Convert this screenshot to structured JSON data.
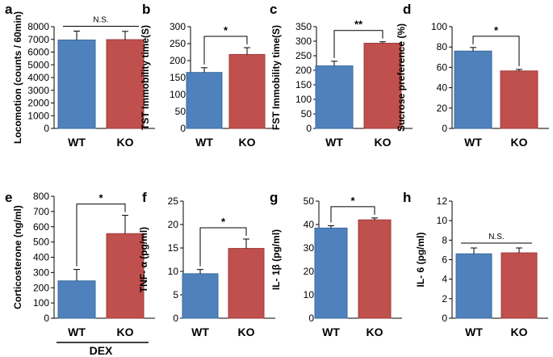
{
  "chart_data": [
    {
      "type": "bar",
      "panel_label": "a",
      "categories": [
        "WT",
        "KO"
      ],
      "values": [
        6950,
        6980
      ],
      "errors": [
        700,
        650
      ],
      "ylabel": "Locomotion (counts / 60min)",
      "ylim": [
        0,
        8000
      ],
      "yticks": [
        0,
        1000,
        2000,
        3000,
        4000,
        5000,
        6000,
        7000,
        8000
      ],
      "significance": "N.S.",
      "colors": [
        "#4F81BD",
        "#C0504D"
      ]
    },
    {
      "type": "bar",
      "panel_label": "b",
      "categories": [
        "WT",
        "KO"
      ],
      "values": [
        165,
        218
      ],
      "errors": [
        14,
        20
      ],
      "ylabel": "TST Immobility time(S)",
      "ylim": [
        0,
        300
      ],
      "yticks": [
        0,
        50,
        100,
        150,
        200,
        250,
        300
      ],
      "significance": "*",
      "colors": [
        "#4F81BD",
        "#C0504D"
      ]
    },
    {
      "type": "bar",
      "panel_label": "c",
      "categories": [
        "WT",
        "KO"
      ],
      "values": [
        215,
        293
      ],
      "errors": [
        16,
        5
      ],
      "ylabel": "FST Immobility time(S)",
      "ylim": [
        0,
        350
      ],
      "yticks": [
        0,
        50,
        100,
        150,
        200,
        250,
        300,
        350
      ],
      "significance": "**",
      "colors": [
        "#4F81BD",
        "#C0504D"
      ]
    },
    {
      "type": "bar",
      "panel_label": "d",
      "categories": [
        "WT",
        "KO"
      ],
      "values": [
        76,
        56.5
      ],
      "errors": [
        3.5,
        1.5
      ],
      "ylabel": "Sucrose preference (%)",
      "ylim": [
        0,
        100
      ],
      "yticks": [
        0,
        20,
        40,
        60,
        80,
        100
      ],
      "significance": "*",
      "colors": [
        "#4F81BD",
        "#C0504D"
      ]
    },
    {
      "type": "bar",
      "panel_label": "e",
      "categories": [
        "WT",
        "KO"
      ],
      "values": [
        245,
        555
      ],
      "errors": [
        75,
        120
      ],
      "ylabel": "Corticosterone (ng/ml)",
      "ylim": [
        0,
        800
      ],
      "yticks": [
        0,
        100,
        200,
        300,
        400,
        500,
        600,
        700,
        800
      ],
      "significance": "*",
      "group_label": "DEX",
      "colors": [
        "#4F81BD",
        "#C0504D"
      ]
    },
    {
      "type": "bar",
      "panel_label": "f",
      "categories": [
        "WT",
        "KO"
      ],
      "values": [
        9.5,
        14.9
      ],
      "errors": [
        0.9,
        2.0
      ],
      "ylabel": "TNF- α (pg/ml)",
      "ylim": [
        0,
        25
      ],
      "yticks": [
        0,
        5,
        10,
        15,
        20,
        25
      ],
      "significance": "*",
      "colors": [
        "#4F81BD",
        "#C0504D"
      ]
    },
    {
      "type": "bar",
      "panel_label": "g",
      "categories": [
        "WT",
        "KO"
      ],
      "values": [
        38.5,
        42
      ],
      "errors": [
        1.0,
        0.8
      ],
      "ylabel": "IL- 1β (pg/ml)",
      "ylim": [
        0,
        50
      ],
      "yticks": [
        0,
        10,
        20,
        30,
        40,
        50
      ],
      "significance": "*",
      "colors": [
        "#4F81BD",
        "#C0504D"
      ]
    },
    {
      "type": "bar",
      "panel_label": "h",
      "categories": [
        "WT",
        "KO"
      ],
      "values": [
        6.6,
        6.7
      ],
      "errors": [
        0.6,
        0.5
      ],
      "ylabel": "IL- 6 (pg/ml)",
      "ylim": [
        0,
        12
      ],
      "yticks": [
        0,
        2,
        4,
        6,
        8,
        10,
        12
      ],
      "significance": "N.S.",
      "colors": [
        "#4F81BD",
        "#C0504D"
      ]
    }
  ]
}
